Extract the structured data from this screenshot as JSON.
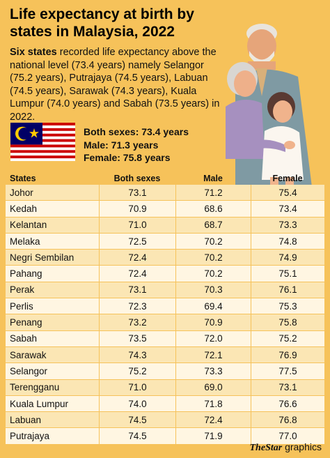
{
  "title": "Life expectancy at birth by states in Malaysia, 2022",
  "intro": {
    "lead": "Six states",
    "rest": " recorded life expectancy above the national level (73.4 years) namely Selangor (75.2 years), Putrajaya (74.5 years), Labuan (74.5 years), Sarawak (74.3 years), Kuala Lumpur (74.0 years) and Sabah (73.5 years) in 2022."
  },
  "stats": {
    "both": "Both sexes: 73.4 years",
    "male": "Male: 71.3 years",
    "female": "Female: 75.8 years"
  },
  "table": {
    "headers": [
      "States",
      "Both sexes",
      "Male",
      "Female"
    ],
    "rows": [
      [
        "Johor",
        "73.1",
        "71.2",
        "75.4"
      ],
      [
        "Kedah",
        "70.9",
        "68.6",
        "73.4"
      ],
      [
        "Kelantan",
        "71.0",
        "68.7",
        "73.3"
      ],
      [
        "Melaka",
        "72.5",
        "70.2",
        "74.8"
      ],
      [
        "Negri Sembilan",
        "72.4",
        "70.2",
        "74.9"
      ],
      [
        "Pahang",
        "72.4",
        "70.2",
        "75.1"
      ],
      [
        "Perak",
        "73.1",
        "70.3",
        "76.1"
      ],
      [
        "Perlis",
        "72.3",
        "69.4",
        "75.3"
      ],
      [
        "Penang",
        "73.2",
        "70.9",
        "75.8"
      ],
      [
        "Sabah",
        "73.5",
        "72.0",
        "75.2"
      ],
      [
        "Sarawak",
        "74.3",
        "72.1",
        "76.9"
      ],
      [
        "Selangor",
        "75.2",
        "73.3",
        "77.5"
      ],
      [
        "Terengganu",
        "71.0",
        "69.0",
        "73.1"
      ],
      [
        "Kuala Lumpur",
        "74.0",
        "71.8",
        "76.6"
      ],
      [
        "Labuan",
        "74.5",
        "72.4",
        "76.8"
      ],
      [
        "Putrajaya",
        "74.5",
        "71.9",
        "77.0"
      ]
    ]
  },
  "footer": {
    "brand_the": "The",
    "brand_star": "Star",
    "suffix": " graphics"
  },
  "colors": {
    "background": "#f6c25a",
    "row_dark": "#fbe6b4",
    "row_light": "#fff6e2"
  },
  "icons": {
    "flag": "malaysia-flag-icon",
    "illustration": "family-illustration"
  }
}
